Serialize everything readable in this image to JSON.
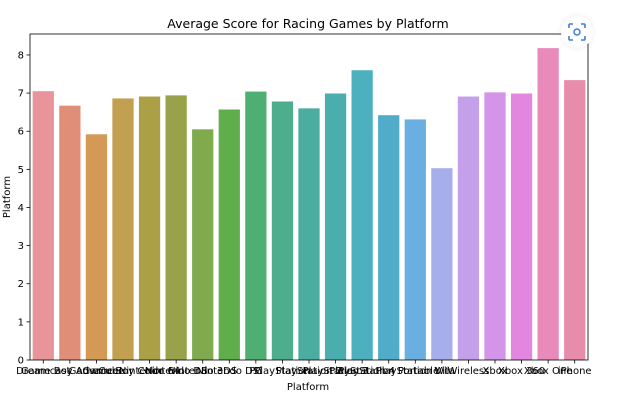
{
  "chart_data": {
    "type": "bar",
    "title": "Average Score for Racing Games by Platform",
    "xlabel": "Platform",
    "ylabel": "Platform",
    "ylim": [
      0,
      8.55
    ],
    "yticks": [
      0,
      1,
      2,
      3,
      4,
      5,
      6,
      7,
      8
    ],
    "grid": false,
    "categories": [
      "Dreamcast",
      "Game Boy Advance",
      "GameCube",
      "Game Boy Color",
      "Nintendo 64",
      "Nintendo DS",
      "Nintendo 3DS",
      "Nintendo DSi",
      "PC",
      "PlayStation",
      "PlayStation 2",
      "PlayStation 3",
      "PlayStation 4",
      "PlayStation Portable",
      "PlayStation Vita",
      "Wii",
      "Wireless",
      "Xbox",
      "Xbox 360",
      "Xbox One",
      "iPhone"
    ],
    "values": [
      7.05,
      6.67,
      5.92,
      6.86,
      6.91,
      6.94,
      6.05,
      6.57,
      7.04,
      6.78,
      6.6,
      6.99,
      7.6,
      6.42,
      6.31,
      5.03,
      6.91,
      7.02,
      6.99,
      8.18,
      7.34
    ],
    "colors": [
      "#e8949a",
      "#e08e78",
      "#d49a55",
      "#c1a04f",
      "#aca046",
      "#99a24a",
      "#80aa4e",
      "#5fae4b",
      "#4faf73",
      "#4cae8d",
      "#4aad9f",
      "#4aaeae",
      "#4db0bf",
      "#50acc9",
      "#6baee1",
      "#a6aeeb",
      "#c4a0ea",
      "#d494ea",
      "#e386df",
      "#e88bbb",
      "#e78dab"
    ]
  },
  "ui": {
    "scan_button_icon": "scan-icon"
  }
}
